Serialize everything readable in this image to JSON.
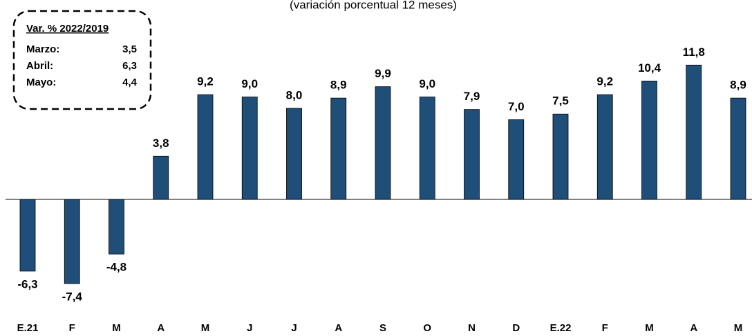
{
  "chart_data": {
    "type": "bar",
    "subtitle": "(variación porcentual 12 meses)",
    "categories": [
      "E.21",
      "F",
      "M",
      "A",
      "M",
      "J",
      "J",
      "A",
      "S",
      "O",
      "N",
      "D",
      "E.22",
      "F",
      "M",
      "A",
      "M"
    ],
    "values": [
      -6.3,
      -7.4,
      -4.8,
      3.8,
      9.2,
      9.0,
      8.0,
      8.9,
      9.9,
      9.0,
      7.9,
      7.0,
      7.5,
      9.2,
      10.4,
      11.8,
      8.9
    ],
    "value_labels": [
      "-6,3",
      "-7,4",
      "-4,8",
      "3,8",
      "9,2",
      "9,0",
      "8,0",
      "8,9",
      "9,9",
      "9,0",
      "7,9",
      "7,0",
      "7,5",
      "9,2",
      "10,4",
      "11,8",
      "8,9"
    ],
    "color": "#1f4e79",
    "ylim": [
      -10,
      12
    ],
    "inset": {
      "title": "Var. % 2022/2019",
      "rows": [
        [
          "Marzo:",
          "3,5"
        ],
        [
          "Abril:",
          "6,3"
        ],
        [
          "Mayo:",
          "4,4"
        ]
      ]
    }
  }
}
